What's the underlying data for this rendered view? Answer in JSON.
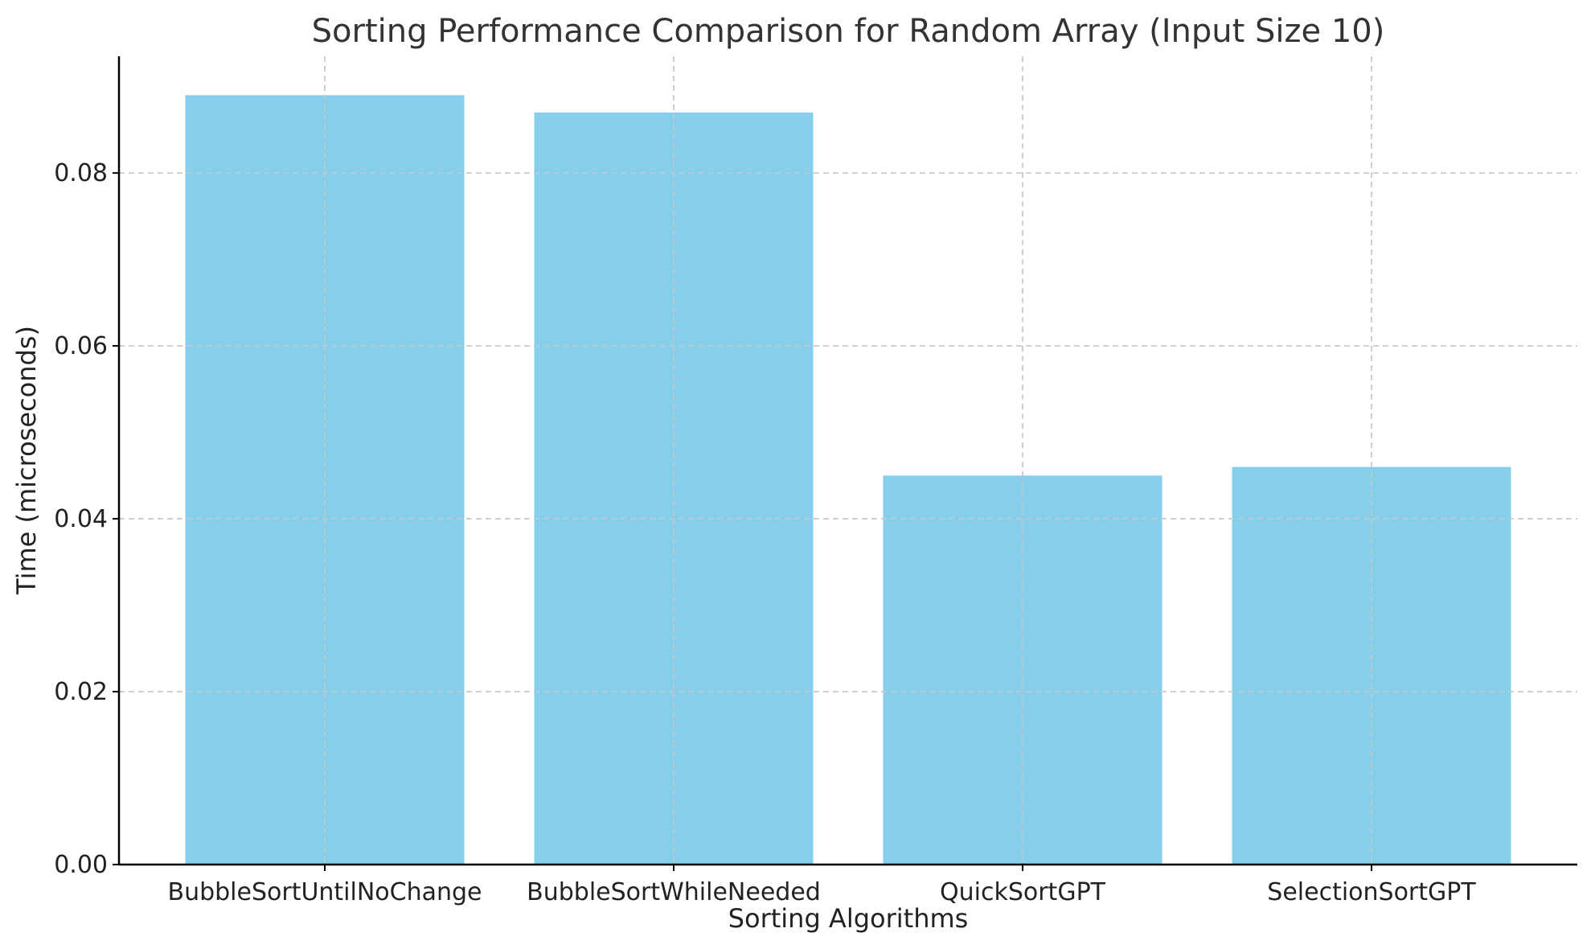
{
  "chart_data": {
    "type": "bar",
    "title": "Sorting Performance Comparison for Random Array (Input Size 10)",
    "xlabel": "Sorting Algorithms",
    "ylabel": "Time (microseconds)",
    "categories": [
      "BubbleSortUntilNoChange",
      "BubbleSortWhileNeeded",
      "QuickSortGPT",
      "SelectionSortGPT"
    ],
    "values": [
      0.089,
      0.087,
      0.045,
      0.046
    ],
    "ylim": [
      0,
      0.0935
    ],
    "yticks": [
      "0.00",
      "0.02",
      "0.04",
      "0.06",
      "0.08"
    ],
    "ytick_values": [
      0,
      0.02,
      0.04,
      0.06,
      0.08
    ],
    "bar_color": "#87CEEB",
    "grid": true,
    "legend": false
  }
}
